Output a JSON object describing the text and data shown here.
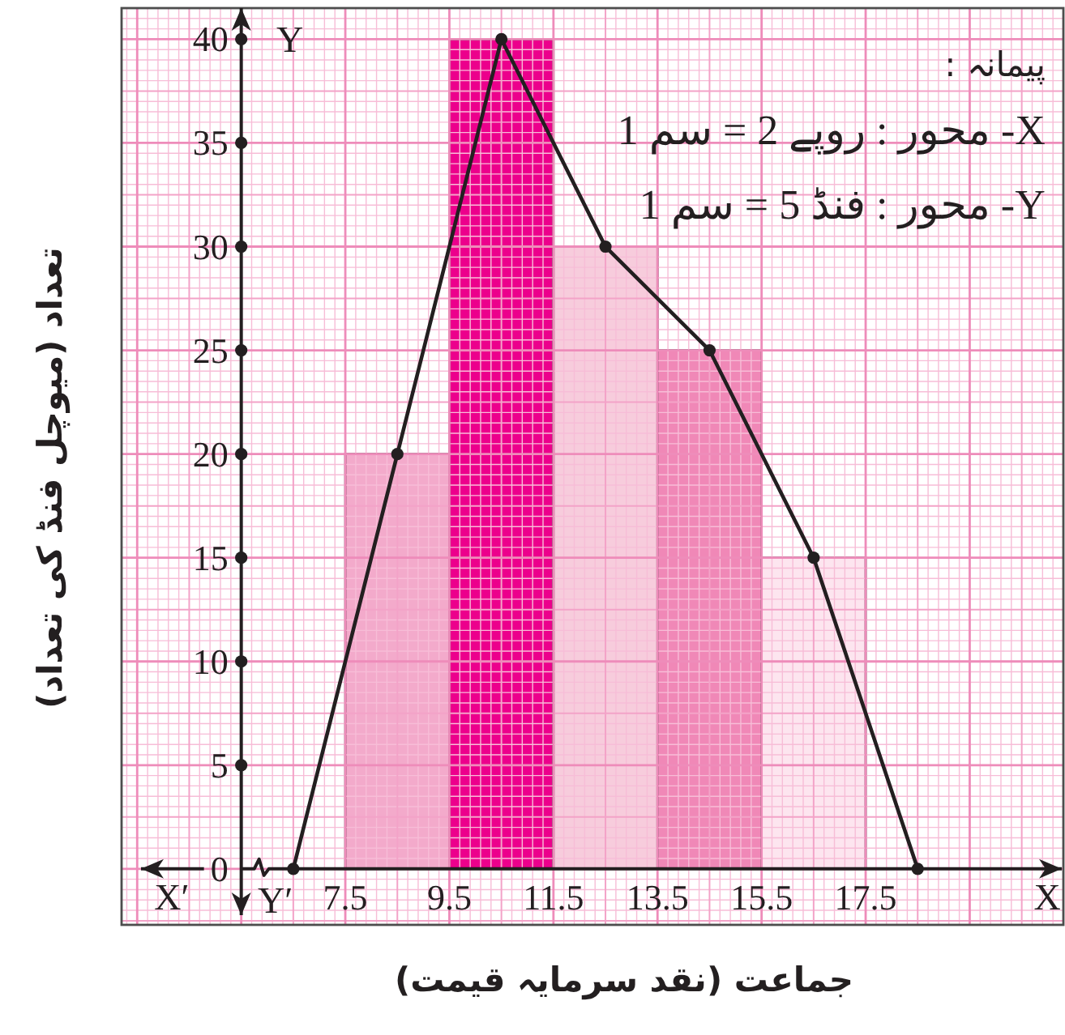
{
  "chart_data": {
    "type": "histogram",
    "xlabel": "جماعت (نقد سرمایہ قیمت)",
    "ylabel": "تعداد (میوچل فنڈ کی تعداد)",
    "annotations": [
      "پیمانہ :",
      "X- محور : روپے 2 = سم 1",
      "Y- محور : فنڈ 5 = سم 1",
      "X",
      "X′",
      "Y",
      "Y′"
    ],
    "bins": [
      7.5,
      9.5,
      11.5,
      13.5,
      15.5,
      17.5
    ],
    "series": [
      {
        "type": "histogram",
        "values": [
          20,
          40,
          30,
          25,
          15
        ],
        "colors": [
          "#f3aacb",
          "#ec008c",
          "#f7ccdc",
          "#f088b7",
          "#fde5ef"
        ]
      },
      {
        "type": "line",
        "x": [
          6.5,
          8.5,
          10.5,
          12.5,
          14.5,
          16.5,
          18.5
        ],
        "values": [
          0,
          20,
          40,
          30,
          25,
          15,
          0
        ],
        "color": "#231f20",
        "marker": "circle"
      }
    ],
    "xlim": [
      3.2,
      21.3
    ],
    "ylim": [
      -2.7,
      41.5
    ],
    "xticks": [
      {
        "value": 3.3,
        "label": null
      },
      {
        "value": 3.5,
        "label": null
      },
      {
        "value": 3.7,
        "label": null
      },
      {
        "value": 3.9,
        "label": null
      },
      {
        "value": 4.1,
        "label": null
      },
      {
        "value": 4.3,
        "label": null
      },
      {
        "value": 4.5,
        "label": null
      },
      {
        "value": 4.7,
        "label": null
      },
      {
        "value": 4.9,
        "label": null
      },
      {
        "value": 5.1,
        "label": null
      },
      {
        "value": 5.3,
        "label": null
      },
      {
        "value": 5.5,
        "label": null
      },
      {
        "value": 5.7,
        "label": null
      },
      {
        "value": 5.9,
        "label": null
      },
      {
        "value": 6.1,
        "label": null
      },
      {
        "value": 6.3,
        "label": null
      },
      {
        "value": 6.5,
        "label": null
      },
      {
        "value": 6.7,
        "label": null
      },
      {
        "value": 6.9,
        "label": null
      },
      {
        "value": 7.1,
        "label": null
      },
      {
        "value": 7.3,
        "label": null
      },
      7.5,
      {
        "value": 7.7,
        "label": null
      },
      {
        "value": 7.9,
        "label": null
      },
      {
        "value": 8.1,
        "label": null
      },
      {
        "value": 8.3,
        "label": null
      },
      {
        "value": 8.5,
        "label": null
      },
      {
        "value": 8.7,
        "label": null
      },
      {
        "value": 8.9,
        "label": null
      },
      {
        "value": 9.1,
        "label": null
      },
      {
        "value": 9.3,
        "label": null
      },
      9.5,
      {
        "value": 9.7,
        "label": null
      },
      {
        "value": 9.9,
        "label": null
      },
      {
        "value": 10.1,
        "label": null
      },
      {
        "value": 10.3,
        "label": null
      },
      {
        "value": 10.5,
        "label": null
      },
      {
        "value": 10.7,
        "label": null
      },
      {
        "value": 10.9,
        "label": null
      },
      {
        "value": 11.1,
        "label": null
      },
      {
        "value": 11.3,
        "label": null
      },
      11.5,
      {
        "value": 11.7,
        "label": null
      },
      {
        "value": 11.9,
        "label": null
      },
      {
        "value": 12.1,
        "label": null
      },
      {
        "value": 12.3,
        "label": null
      },
      {
        "value": 12.5,
        "label": null
      },
      {
        "value": 12.7,
        "label": null
      },
      {
        "value": 12.9,
        "label": null
      },
      {
        "value": 13.1,
        "label": null
      },
      {
        "value": 13.3,
        "label": null
      },
      13.5,
      {
        "value": 13.7,
        "label": null
      },
      {
        "value": 13.9,
        "label": null
      },
      {
        "value": 14.1,
        "label": null
      },
      {
        "value": 14.3,
        "label": null
      },
      {
        "value": 14.5,
        "label": null
      },
      {
        "value": 14.7,
        "label": null
      },
      {
        "value": 14.9,
        "label": null
      },
      {
        "value": 15.1,
        "label": null
      },
      {
        "value": 15.3,
        "label": null
      },
      15.5,
      {
        "value": 15.7,
        "label": null
      },
      {
        "value": 15.9,
        "label": null
      },
      {
        "value": 16.1,
        "label": null
      },
      {
        "value": 16.3,
        "label": null
      },
      {
        "value": 16.5,
        "label": null
      },
      {
        "value": 16.7,
        "label": null
      },
      {
        "value": 16.9,
        "label": null
      },
      {
        "value": 17.1,
        "label": null
      },
      {
        "value": 17.3,
        "label": null
      },
      17.5,
      {
        "value": 17.7,
        "label": null
      },
      {
        "value": 17.9,
        "label": null
      },
      {
        "value": 18.1,
        "label": null
      },
      {
        "value": 18.3,
        "label": null
      },
      {
        "value": 18.5,
        "label": null
      },
      {
        "value": 18.7,
        "label": null
      },
      {
        "value": 18.9,
        "label": null
      },
      {
        "value": 19.1,
        "label": null
      },
      {
        "value": 19.3,
        "label": null
      },
      {
        "value": 19.5,
        "label": null
      },
      {
        "value": 19.7,
        "label": null
      },
      {
        "value": 19.9,
        "label": null
      },
      {
        "value": 20.1,
        "label": null
      },
      {
        "value": 20.3,
        "label": null
      },
      {
        "value": 20.5,
        "label": null
      },
      {
        "value": 20.7,
        "label": null
      },
      {
        "value": 20.9,
        "label": null
      },
      {
        "value": 21.1,
        "label": null
      },
      {
        "value": 21.3,
        "label": null
      }
    ],
    "yticks": [
      {
        "value": -2.5,
        "label": null
      },
      {
        "value": -2,
        "label": null
      },
      {
        "value": -1.5,
        "label": null
      },
      {
        "value": -1,
        "label": null
      },
      {
        "value": -0.5,
        "label": null
      },
      0,
      {
        "value": 0.5,
        "label": null
      },
      {
        "value": 1,
        "label": null
      },
      {
        "value": 1.5,
        "label": null
      },
      {
        "value": 2,
        "label": null
      },
      {
        "value": 2.5,
        "label": null
      },
      {
        "value": 3,
        "label": null
      },
      {
        "value": 3.5,
        "label": null
      },
      {
        "value": 4,
        "label": null
      },
      {
        "value": 4.5,
        "label": null
      },
      5,
      {
        "value": 5.5,
        "label": null
      },
      {
        "value": 6,
        "label": null
      },
      {
        "value": 6.5,
        "label": null
      },
      {
        "value": 7,
        "label": null
      },
      {
        "value": 7.5,
        "label": null
      },
      {
        "value": 8,
        "label": null
      },
      {
        "value": 8.5,
        "label": null
      },
      {
        "value": 9,
        "label": null
      },
      {
        "value": 9.5,
        "label": null
      },
      10,
      {
        "value": 10.5,
        "label": null
      },
      {
        "value": 11,
        "label": null
      },
      {
        "value": 11.5,
        "label": null
      },
      {
        "value": 12,
        "label": null
      },
      {
        "value": 12.5,
        "label": null
      },
      {
        "value": 13,
        "label": null
      },
      {
        "value": 13.5,
        "label": null
      },
      {
        "value": 14,
        "label": null
      },
      {
        "value": 14.5,
        "label": null
      },
      15,
      {
        "value": 15.5,
        "label": null
      },
      {
        "value": 16,
        "label": null
      },
      {
        "value": 16.5,
        "label": null
      },
      {
        "value": 17,
        "label": null
      },
      {
        "value": 17.5,
        "label": null
      },
      {
        "value": 18,
        "label": null
      },
      {
        "value": 18.5,
        "label": null
      },
      {
        "value": 19,
        "label": null
      },
      {
        "value": 19.5,
        "label": null
      },
      20,
      {
        "value": 20.5,
        "label": null
      },
      {
        "value": 21,
        "label": null
      },
      {
        "value": 21.5,
        "label": null
      },
      {
        "value": 22,
        "label": null
      },
      {
        "value": 22.5,
        "label": null
      },
      {
        "value": 23,
        "label": null
      },
      {
        "value": 23.5,
        "label": null
      },
      {
        "value": 24,
        "label": null
      },
      {
        "value": 24.5,
        "label": null
      },
      25,
      {
        "value": 25.5,
        "label": null
      },
      {
        "value": 26,
        "label": null
      },
      {
        "value": 26.5,
        "label": null
      },
      {
        "value": 27,
        "label": null
      },
      {
        "value": 27.5,
        "label": null
      },
      {
        "value": 28,
        "label": null
      },
      {
        "value": 28.5,
        "label": null
      },
      {
        "value": 29,
        "label": null
      },
      {
        "value": 29.5,
        "label": null
      },
      30,
      {
        "value": 30.5,
        "label": null
      },
      {
        "value": 31,
        "label": null
      },
      {
        "value": 31.5,
        "label": null
      },
      {
        "value": 32,
        "label": null
      },
      {
        "value": 32.5,
        "label": null
      },
      {
        "value": 33,
        "label": null
      },
      {
        "value": 33.5,
        "label": null
      },
      {
        "value": 34,
        "label": null
      },
      {
        "value": 34.5,
        "label": null
      },
      35,
      {
        "value": 35.5,
        "label": null
      },
      {
        "value": 36,
        "label": null
      },
      {
        "value": 36.5,
        "label": null
      },
      {
        "value": 37,
        "label": null
      },
      {
        "value": 37.5,
        "label": null
      },
      {
        "value": 38,
        "label": null
      },
      {
        "value": 38.5,
        "label": null
      },
      {
        "value": 39,
        "label": null
      },
      {
        "value": 39.5,
        "label": null
      },
      40,
      {
        "value": 40.5,
        "label": null
      },
      {
        "value": 41,
        "label": null
      },
      {
        "value": 41.5,
        "label": null
      }
    ],
    "grid": true
  }
}
